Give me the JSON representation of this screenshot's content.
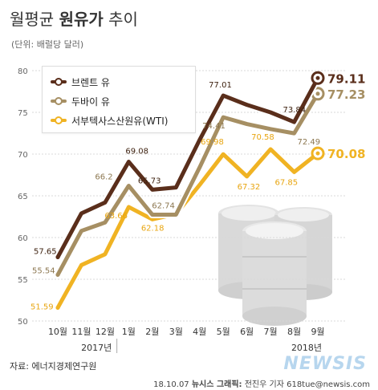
{
  "header": {
    "title_part1": "월평균",
    "title_bold": "원유가",
    "title_part2": "추이",
    "unit": "(단위: 배럴당 달러)"
  },
  "footer": {
    "source": "자료: 에너지경제연구원",
    "date": "18.10.07",
    "agency": "뉴시스 그래픽:",
    "author": "전진우 기자 618tue@newsis.com",
    "logo": "NEWSIS"
  },
  "chart_data": {
    "type": "line",
    "categories": [
      "10월",
      "11월",
      "12월",
      "1월",
      "2월",
      "3월",
      "4월",
      "5월",
      "6월",
      "7월",
      "8월",
      "9월"
    ],
    "year_labels": [
      "2017년",
      "2018년"
    ],
    "ylim": [
      50,
      80
    ],
    "yticks": [
      50,
      55,
      60,
      65,
      70,
      75,
      80
    ],
    "series": [
      {
        "name": "브렌트 유",
        "color": "#5a2e1b",
        "values": [
          57.65,
          62.9,
          64.2,
          69.08,
          65.73,
          66.0,
          71.7,
          77.01,
          75.9,
          75.0,
          73.84,
          79.11
        ],
        "labels": {
          "0": "57.65",
          "3": "69.08",
          "4": "65.73",
          "7": "77.01",
          "10": "73.84"
        },
        "end_label": "79.11"
      },
      {
        "name": "두바이 유",
        "color": "#a68f63",
        "values": [
          55.54,
          60.8,
          61.8,
          66.2,
          62.74,
          62.74,
          68.4,
          74.41,
          73.6,
          73.0,
          72.49,
          77.23
        ],
        "labels": {
          "0": "55.54",
          "3": "66.2",
          "5": "62.74",
          "7": "74.41",
          "10": "72.49"
        },
        "end_label": "77.23"
      },
      {
        "name": "서부텍사스산원유(WTI)",
        "color": "#f0b323",
        "values": [
          51.59,
          56.7,
          58.0,
          63.66,
          62.18,
          62.8,
          66.3,
          69.98,
          67.32,
          70.58,
          67.85,
          70.08
        ],
        "labels": {
          "0": "51.59",
          "3": "63.66",
          "4": "62.18",
          "7": "69.98",
          "8": "67.32",
          "9": "70.58",
          "10": "67.85"
        },
        "end_label": "70.08"
      }
    ]
  }
}
